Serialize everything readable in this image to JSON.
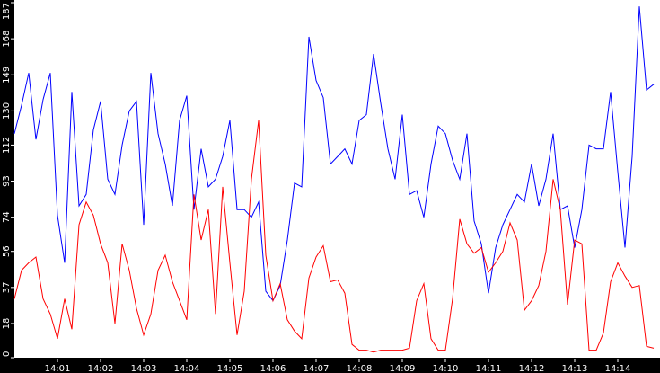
{
  "chart_data": {
    "type": "line",
    "title": "",
    "xlabel": "",
    "ylabel": "",
    "ylim": [
      0,
      187
    ],
    "xlim": [
      "14:00:00",
      "14:15:00"
    ],
    "grid": false,
    "legend": "none",
    "background": "#ffffff",
    "frame_color": "#000000",
    "y_ticks": [
      "0",
      "18",
      "37",
      "56",
      "74",
      "93",
      "112",
      "130",
      "149",
      "168",
      "187"
    ],
    "x_ticks": [
      "14:01",
      "14:02",
      "14:03",
      "14:04",
      "14:05",
      "14:06",
      "14:07",
      "14:08",
      "14:09",
      "14:10",
      "14:11",
      "14:12",
      "14:13",
      "14:14"
    ],
    "x": [
      "14:00:00",
      "14:00:10",
      "14:00:20",
      "14:00:30",
      "14:00:40",
      "14:00:50",
      "14:01:00",
      "14:01:10",
      "14:01:20",
      "14:01:30",
      "14:01:40",
      "14:01:50",
      "14:02:00",
      "14:02:10",
      "14:02:20",
      "14:02:30",
      "14:02:40",
      "14:02:50",
      "14:03:00",
      "14:03:10",
      "14:03:20",
      "14:03:30",
      "14:03:40",
      "14:03:50",
      "14:04:00",
      "14:04:10",
      "14:04:20",
      "14:04:30",
      "14:04:40",
      "14:04:50",
      "14:05:00",
      "14:05:10",
      "14:05:20",
      "14:05:30",
      "14:05:40",
      "14:05:50",
      "14:06:00",
      "14:06:10",
      "14:06:20",
      "14:06:30",
      "14:06:40",
      "14:06:50",
      "14:07:00",
      "14:07:10",
      "14:07:20",
      "14:07:30",
      "14:07:40",
      "14:07:50",
      "14:08:00",
      "14:08:10",
      "14:08:20",
      "14:08:30",
      "14:08:40",
      "14:08:50",
      "14:09:00",
      "14:09:10",
      "14:09:20",
      "14:09:30",
      "14:09:40",
      "14:09:50",
      "14:10:00",
      "14:10:10",
      "14:10:20",
      "14:10:30",
      "14:10:40",
      "14:10:50",
      "14:11:00",
      "14:11:10",
      "14:11:20",
      "14:11:30",
      "14:11:40",
      "14:11:50",
      "14:12:00",
      "14:12:10",
      "14:12:20",
      "14:12:30",
      "14:12:40",
      "14:12:50",
      "14:13:00",
      "14:13:10",
      "14:13:20",
      "14:13:30",
      "14:13:40",
      "14:13:50",
      "14:14:00",
      "14:14:10",
      "14:14:20",
      "14:14:30",
      "14:14:40",
      "14:14:50"
    ],
    "series": [
      {
        "color": "#0000ff",
        "values": [
          118,
          133,
          150,
          115,
          136,
          150,
          75,
          50,
          140,
          80,
          86,
          120,
          135,
          94,
          86,
          112,
          130,
          135,
          70,
          150,
          118,
          102,
          80,
          125,
          138,
          78,
          110,
          90,
          94,
          106,
          125,
          78,
          78,
          74,
          82,
          35,
          30,
          38,
          62,
          92,
          90,
          169,
          146,
          137,
          102,
          106,
          110,
          102,
          125,
          128,
          160,
          134,
          110,
          94,
          128,
          86,
          88,
          74,
          102,
          122,
          118,
          104,
          94,
          118,
          72,
          60,
          34,
          58,
          70,
          78,
          86,
          82,
          102,
          80,
          94,
          118,
          78,
          80,
          58,
          78,
          112,
          110,
          110,
          140,
          98,
          58,
          106,
          185,
          141,
          144
        ]
      },
      {
        "color": "#ff0000",
        "values": [
          31,
          46,
          50,
          53,
          31,
          23,
          10,
          31,
          15,
          70,
          82,
          75,
          60,
          50,
          18,
          60,
          46,
          26,
          12,
          23,
          46,
          54,
          40,
          30,
          20,
          86,
          62,
          78,
          23,
          90,
          50,
          12,
          35,
          94,
          125,
          54,
          30,
          39,
          20,
          14,
          10,
          42,
          53,
          59,
          40,
          41,
          34,
          7,
          4,
          4,
          3,
          4,
          4,
          4,
          4,
          5,
          30,
          39,
          10,
          4,
          4,
          31,
          73,
          60,
          55,
          58,
          45,
          50,
          56,
          71,
          62,
          25,
          30,
          38,
          56,
          94,
          78,
          28,
          62,
          60,
          4,
          4,
          13,
          40,
          50,
          43,
          37,
          38,
          6,
          5
        ]
      }
    ]
  }
}
